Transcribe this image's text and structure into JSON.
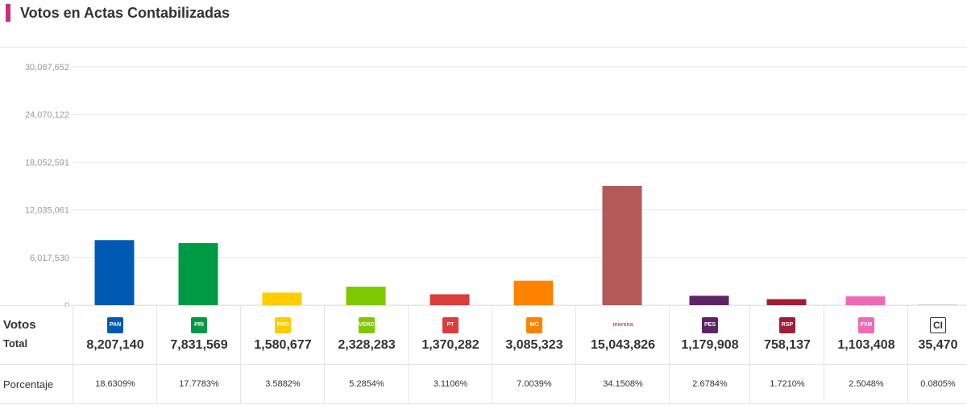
{
  "header": {
    "title": "Votos en Actas Contabilizadas"
  },
  "labels": {
    "votos": "Votos",
    "total": "Total",
    "porcentaje": "Porcentaje"
  },
  "chart_data": {
    "type": "bar",
    "title": "Votos en Actas Contabilizadas",
    "ylim": [
      0,
      30087652
    ],
    "yticks": [
      "30,087,652",
      "24,070,122",
      "18,052,591",
      "12,035,061",
      "6,017,530",
      "0"
    ],
    "ytick_values": [
      30087652,
      24070122,
      18052591,
      12035061,
      6017530,
      0
    ],
    "grid": true,
    "categories": [
      "PAN",
      "PRI",
      "PRD",
      "PVEM",
      "PT",
      "MC",
      "morena",
      "PES",
      "RSP",
      "FXM",
      "CI"
    ],
    "values": [
      8207140,
      7831569,
      1580677,
      2328283,
      1370282,
      3085323,
      15043826,
      1179908,
      758137,
      1103408,
      35470
    ],
    "colors": [
      "#0059b3",
      "#009a44",
      "#ffcc00",
      "#7dc800",
      "#dc3c3c",
      "#ff8300",
      "#b35a59",
      "#5d2464",
      "#a21d36",
      "#f06ab3",
      "#888888"
    ]
  },
  "table": {
    "parties": [
      {
        "logo": "PAN",
        "icon": "pan-logo-icon",
        "votes": "8,207,140",
        "pct": "18.6309%",
        "color": "#0059b3"
      },
      {
        "logo": "PRI",
        "icon": "pri-logo-icon",
        "votes": "7,831,569",
        "pct": "17.7783%",
        "color": "#009a44"
      },
      {
        "logo": "PRD",
        "icon": "prd-logo-icon",
        "votes": "1,580,677",
        "pct": "3.5882%",
        "color": "#ffcc00"
      },
      {
        "logo": "VERDE",
        "icon": "pvem-logo-icon",
        "votes": "2,328,283",
        "pct": "5.2854%",
        "color": "#7dc800"
      },
      {
        "logo": "PT",
        "icon": "pt-logo-icon",
        "votes": "1,370,282",
        "pct": "3.1106%",
        "color": "#dc3c3c"
      },
      {
        "logo": "MC",
        "icon": "mc-logo-icon",
        "votes": "3,085,323",
        "pct": "7.0039%",
        "color": "#ff8300"
      },
      {
        "logo": "morena",
        "icon": "morena-logo-icon",
        "votes": "15,043,826",
        "pct": "34.1508%",
        "color": "#b35a59"
      },
      {
        "logo": "PES",
        "icon": "pes-logo-icon",
        "votes": "1,179,908",
        "pct": "2.6784%",
        "color": "#5d2464"
      },
      {
        "logo": "RSP",
        "icon": "rsp-logo-icon",
        "votes": "758,137",
        "pct": "1.7210%",
        "color": "#a21d36"
      },
      {
        "logo": "FXM",
        "icon": "fxm-logo-icon",
        "votes": "1,103,408",
        "pct": "2.5048%",
        "color": "#f06ab3"
      },
      {
        "logo": "CI",
        "icon": "ci-logo-icon",
        "votes": "35,470",
        "pct": "0.0805%",
        "color": "#ffffff"
      }
    ]
  }
}
